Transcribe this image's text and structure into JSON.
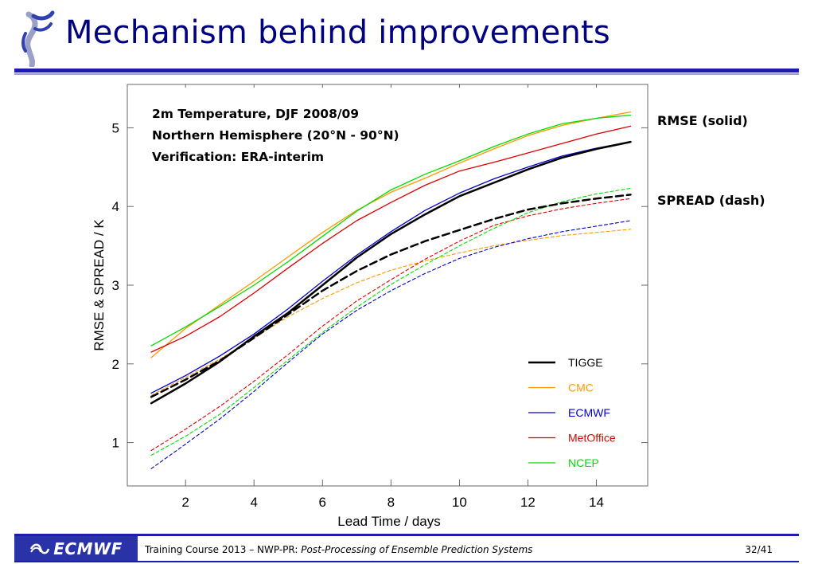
{
  "slide": {
    "title": "Mechanism behind improvements",
    "rmse_note": "RMSE (solid)",
    "spread_note": "SPREAD (dash)"
  },
  "footer": {
    "logo_text": "ECMWF",
    "course": "Training Course 2013 – NWP-PR: ",
    "course_topic": "Post-Processing of Ensemble Prediction Systems",
    "page": "32/41"
  },
  "chart_data": {
    "type": "line",
    "annotations": [
      "2m Temperature, DJF 2008/09",
      "Northern Hemisphere (20°N - 90°N)",
      "Verification: ERA-interim"
    ],
    "xlabel": "Lead Time / days",
    "ylabel": "RMSE & SPREAD / K",
    "xlim": [
      0.3,
      15.5
    ],
    "ylim": [
      0.45,
      5.55
    ],
    "xticks": [
      2,
      4,
      6,
      8,
      10,
      12,
      14
    ],
    "yticks": [
      1,
      2,
      3,
      4,
      5
    ],
    "legend_position": "bottom-right",
    "x": [
      1,
      2,
      3,
      4,
      5,
      6,
      7,
      8,
      9,
      10,
      11,
      12,
      13,
      14,
      15
    ],
    "series": [
      {
        "name": "TIGGE",
        "metric": "RMSE",
        "style": "solid",
        "color": "#000000",
        "width": 2.5,
        "values": [
          1.5,
          1.75,
          2.03,
          2.35,
          2.65,
          3.0,
          3.35,
          3.65,
          3.9,
          4.13,
          4.3,
          4.47,
          4.62,
          4.73,
          4.82
        ]
      },
      {
        "name": "TIGGE",
        "metric": "SPREAD",
        "style": "dash",
        "color": "#000000",
        "width": 2.5,
        "values": [
          1.58,
          1.8,
          2.04,
          2.33,
          2.63,
          2.93,
          3.18,
          3.39,
          3.56,
          3.7,
          3.84,
          3.96,
          4.04,
          4.1,
          4.15
        ]
      },
      {
        "name": "CMC",
        "metric": "RMSE",
        "style": "solid",
        "color": "#ff9900",
        "width": 1.3,
        "values": [
          2.08,
          2.45,
          2.75,
          3.05,
          3.36,
          3.67,
          3.95,
          4.18,
          4.36,
          4.55,
          4.73,
          4.9,
          5.03,
          5.12,
          5.2
        ]
      },
      {
        "name": "CMC",
        "metric": "SPREAD",
        "style": "dash",
        "color": "#ff9900",
        "width": 1.1,
        "values": [
          1.6,
          1.83,
          2.06,
          2.33,
          2.6,
          2.83,
          3.03,
          3.19,
          3.31,
          3.41,
          3.5,
          3.57,
          3.63,
          3.67,
          3.71
        ]
      },
      {
        "name": "ECMWF",
        "metric": "RMSE",
        "style": "solid",
        "color": "#0000cc",
        "width": 1.3,
        "values": [
          1.63,
          1.85,
          2.1,
          2.38,
          2.7,
          3.05,
          3.38,
          3.68,
          3.95,
          4.17,
          4.35,
          4.5,
          4.64,
          4.74,
          4.82
        ]
      },
      {
        "name": "ECMWF",
        "metric": "SPREAD",
        "style": "dash",
        "color": "#0000cc",
        "width": 1.1,
        "values": [
          0.67,
          0.98,
          1.3,
          1.65,
          2.02,
          2.38,
          2.68,
          2.93,
          3.15,
          3.34,
          3.48,
          3.59,
          3.68,
          3.75,
          3.82
        ]
      },
      {
        "name": "MetOffice",
        "metric": "RMSE",
        "style": "solid",
        "color": "#dd0000",
        "width": 1.3,
        "values": [
          2.15,
          2.35,
          2.6,
          2.9,
          3.22,
          3.53,
          3.82,
          4.05,
          4.27,
          4.45,
          4.56,
          4.68,
          4.8,
          4.92,
          5.02
        ]
      },
      {
        "name": "MetOffice",
        "metric": "SPREAD",
        "style": "dash",
        "color": "#dd0000",
        "width": 1.1,
        "values": [
          0.9,
          1.17,
          1.46,
          1.78,
          2.12,
          2.48,
          2.8,
          3.07,
          3.33,
          3.56,
          3.76,
          3.88,
          3.97,
          4.04,
          4.1
        ]
      },
      {
        "name": "NCEP",
        "metric": "RMSE",
        "style": "solid",
        "color": "#00dd00",
        "width": 1.3,
        "values": [
          2.23,
          2.47,
          2.73,
          3.0,
          3.3,
          3.62,
          3.94,
          4.21,
          4.41,
          4.58,
          4.76,
          4.92,
          5.05,
          5.12,
          5.16
        ]
      },
      {
        "name": "NCEP",
        "metric": "SPREAD",
        "style": "dash",
        "color": "#00dd00",
        "width": 1.1,
        "values": [
          0.84,
          1.08,
          1.36,
          1.7,
          2.05,
          2.4,
          2.72,
          3.01,
          3.26,
          3.5,
          3.72,
          3.92,
          4.06,
          4.16,
          4.23
        ]
      }
    ],
    "legend": [
      {
        "label": "TIGGE",
        "color": "#000000",
        "text_color": "#000000",
        "width": 2.5
      },
      {
        "label": "CMC",
        "color": "#ff9900",
        "text_color": "#ff9900",
        "width": 1.3
      },
      {
        "label": "ECMWF",
        "color": "#0000cc",
        "text_color": "#0000cc",
        "width": 1.3
      },
      {
        "label": "MetOffice",
        "color": "#dd0000",
        "text_color": "#dd0000",
        "width": 1.3
      },
      {
        "label": "NCEP",
        "color": "#00dd00",
        "text_color": "#00dd00",
        "width": 1.3
      }
    ]
  }
}
